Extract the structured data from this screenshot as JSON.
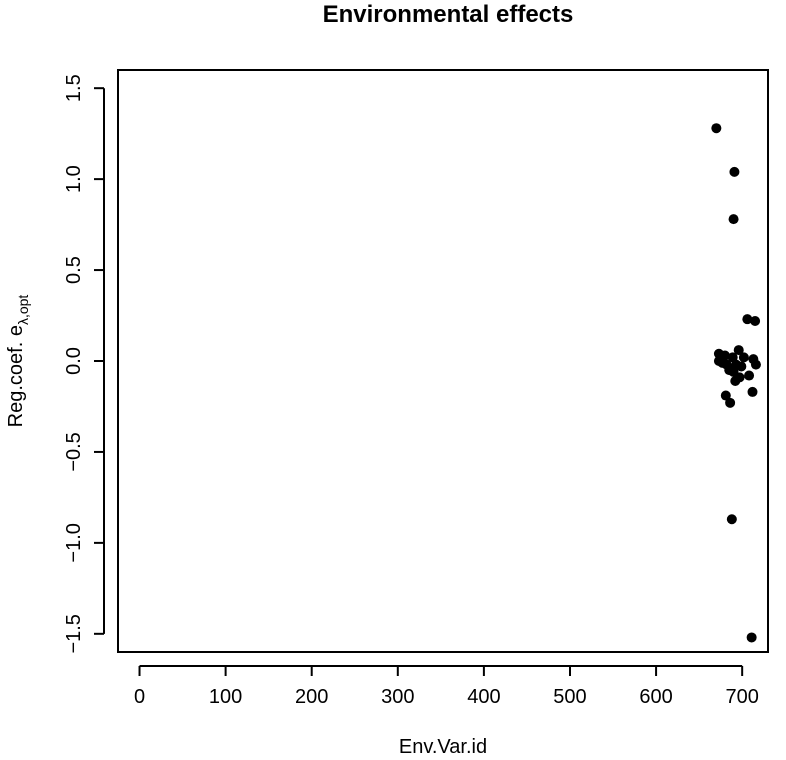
{
  "chart_data": {
    "type": "scatter",
    "title": "Environmental effects",
    "xlabel": "Env.Var.id",
    "ylabel_main": "Reg.coef. e",
    "ylabel_sub": "λ,opt",
    "xlim": [
      -25,
      730
    ],
    "ylim": [
      -1.6,
      1.6
    ],
    "x_ticks": [
      0,
      100,
      200,
      300,
      400,
      500,
      600,
      700
    ],
    "y_ticks": [
      -1.5,
      -1.0,
      -0.5,
      0.0,
      0.5,
      1.0,
      1.5
    ],
    "x_tick_labels": [
      "0",
      "100",
      "200",
      "300",
      "400",
      "500",
      "600",
      "700"
    ],
    "y_tick_labels": [
      "−1.5",
      "−1.0",
      "−0.5",
      "0.0",
      "0.5",
      "1.0",
      "1.5"
    ],
    "grid": false,
    "points": [
      {
        "x": 670,
        "y": 1.28
      },
      {
        "x": 691,
        "y": 1.04
      },
      {
        "x": 690,
        "y": 0.78
      },
      {
        "x": 706,
        "y": 0.23
      },
      {
        "x": 715,
        "y": 0.22
      },
      {
        "x": 696,
        "y": 0.06
      },
      {
        "x": 673,
        "y": 0.04
      },
      {
        "x": 680,
        "y": 0.03
      },
      {
        "x": 689,
        "y": 0.02
      },
      {
        "x": 702,
        "y": 0.02
      },
      {
        "x": 713,
        "y": 0.01
      },
      {
        "x": 673,
        "y": 0.0
      },
      {
        "x": 677,
        "y": -0.01
      },
      {
        "x": 682,
        "y": -0.02
      },
      {
        "x": 693,
        "y": -0.02
      },
      {
        "x": 699,
        "y": -0.03
      },
      {
        "x": 716,
        "y": -0.02
      },
      {
        "x": 685,
        "y": -0.05
      },
      {
        "x": 690,
        "y": -0.06
      },
      {
        "x": 708,
        "y": -0.08
      },
      {
        "x": 697,
        "y": -0.09
      },
      {
        "x": 692,
        "y": -0.11
      },
      {
        "x": 712,
        "y": -0.17
      },
      {
        "x": 681,
        "y": -0.19
      },
      {
        "x": 686,
        "y": -0.23
      },
      {
        "x": 688,
        "y": -0.87
      },
      {
        "x": 711,
        "y": -1.52
      }
    ]
  }
}
